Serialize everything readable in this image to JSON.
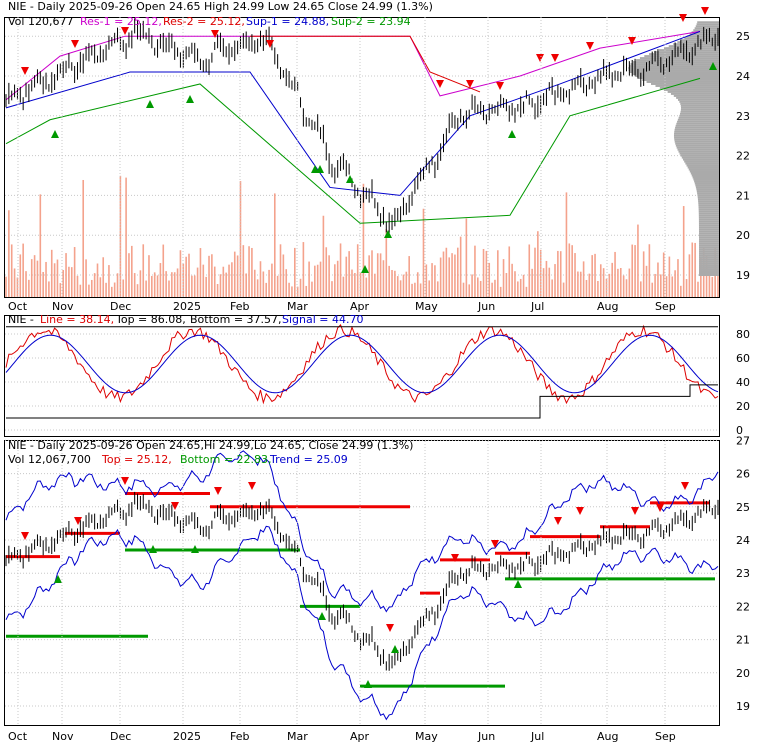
{
  "colors": {
    "price": "#000000",
    "volume": "#f4a28c",
    "res1": "#cc00cc",
    "res2": "#dd0000",
    "sup1": "#0000cc",
    "sup2": "#009900",
    "profile": "#aaaaaa",
    "signal_red": "#dd0000",
    "signal_blue": "#0000cc",
    "bar_red": "#ee0000",
    "bar_green": "#009900",
    "arrow_red": "#ee0000",
    "arrow_green": "#009900"
  },
  "panel1": {
    "header_line1": "NIE - Daily 2025-09-26 Open 24.65  High 24.99  Low 24.65  Close 24.99 (1.3%)",
    "vol_label": "Vol 120,677",
    "res1_label": "Res-1 = 25.12,",
    "res2_label": "Res-2 = 25.12,",
    "sup1_label": "Sup-1 = 24.88,",
    "sup2_label": "Sup-2 = 23.94"
  },
  "panel2": {
    "name_label": "NIE -",
    "line_label": "Line = 38.14,",
    "top_label": "Top = 86.08,",
    "bottom_label": "Bottom = 37.57,",
    "signal_label": "Signal = 44.70"
  },
  "panel3": {
    "header_line1": "NIE - Daily 2025-09-26 Open 24.65,Hi 24.99,Lo 24.65, Close 24.99 (1.3%)",
    "vol_label": "Vol 12,067,700",
    "top_label": "Top = 25.12,",
    "bottom_label": "Bottom = 22.83,",
    "trend_label": "Trend = 25.09"
  },
  "chart_data": {
    "type": "line",
    "x_labels": [
      "Oct",
      "Nov",
      "Dec",
      "2025",
      "Feb",
      "Mar",
      "Apr",
      "May",
      "Jun",
      "Jul",
      "Aug",
      "Sep"
    ],
    "price_axis_ticks": [
      19,
      20,
      21,
      22,
      23,
      24,
      25
    ],
    "oscillator_axis_ticks": [
      0,
      20,
      40,
      60,
      80
    ],
    "lower_axis_ticks": [
      19,
      20,
      21,
      22,
      23,
      24,
      25,
      26,
      27
    ],
    "price_points": [
      {
        "x": "Oct",
        "y": 23.4
      },
      {
        "x": "Nov",
        "y": 24.2
      },
      {
        "x": "Dec",
        "y": 25.1
      },
      {
        "x": "2025",
        "y": 24.4
      },
      {
        "x": "Feb",
        "y": 25.0
      },
      {
        "x": "Mar",
        "y": 22.0
      },
      {
        "x": "Apr",
        "y": 20.3
      },
      {
        "x": "May",
        "y": 23.0
      },
      {
        "x": "Jun",
        "y": 23.2
      },
      {
        "x": "Jul",
        "y": 23.9
      },
      {
        "x": "Aug",
        "y": 24.3
      },
      {
        "x": "Sep",
        "y": 25.0
      }
    ],
    "last_close": 24.99,
    "levels": {
      "res1": 25.12,
      "res2": 25.12,
      "sup1": 24.88,
      "sup2": 23.94
    },
    "oscillator": {
      "line": 38.14,
      "top": 86.08,
      "bottom": 37.57,
      "signal": 44.7
    },
    "trend": {
      "top": 25.12,
      "bottom": 22.83,
      "trend": 25.09
    },
    "volume_last": 120677,
    "volume_total": 12067700
  }
}
